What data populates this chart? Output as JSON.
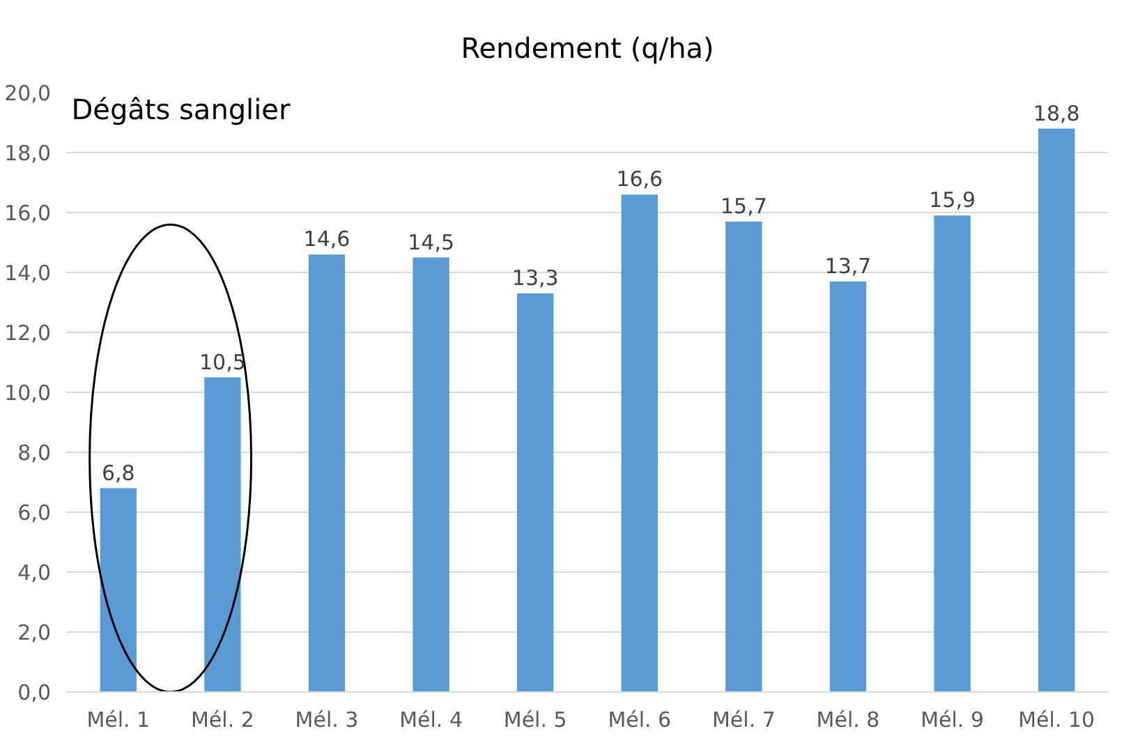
{
  "chart_data": {
    "type": "bar",
    "title": "Rendement (q/ha)",
    "categories": [
      "Mél. 1",
      "Mél. 2",
      "Mél. 3",
      "Mél. 4",
      "Mél. 5",
      "Mél. 6",
      "Mél. 7",
      "Mél. 8",
      "Mél. 9",
      "Mél. 10"
    ],
    "values": [
      6.8,
      10.5,
      14.6,
      14.5,
      13.3,
      16.6,
      15.7,
      13.7,
      15.9,
      18.8
    ],
    "value_labels": [
      "6,8",
      "10,5",
      "14,6",
      "14,5",
      "13,3",
      "16,6",
      "15,7",
      "13,7",
      "15,9",
      "18,8"
    ],
    "color": "#5b9bd5",
    "ylim": [
      0,
      20
    ],
    "yticks": [
      {
        "value": 0,
        "label": "0,0"
      },
      {
        "value": 2,
        "label": "2,0"
      },
      {
        "value": 4,
        "label": "4,0"
      },
      {
        "value": 6,
        "label": "6,0"
      },
      {
        "value": 8,
        "label": "8,0"
      },
      {
        "value": 10,
        "label": "10,0"
      },
      {
        "value": 12,
        "label": "12,0"
      },
      {
        "value": 14,
        "label": "14,0"
      },
      {
        "value": 16,
        "label": "16,0"
      },
      {
        "value": 18,
        "label": "18,0"
      },
      {
        "value": 20,
        "label": "20,0"
      }
    ],
    "grid": "y",
    "annotations": [
      "Dégâts sanglier"
    ]
  }
}
